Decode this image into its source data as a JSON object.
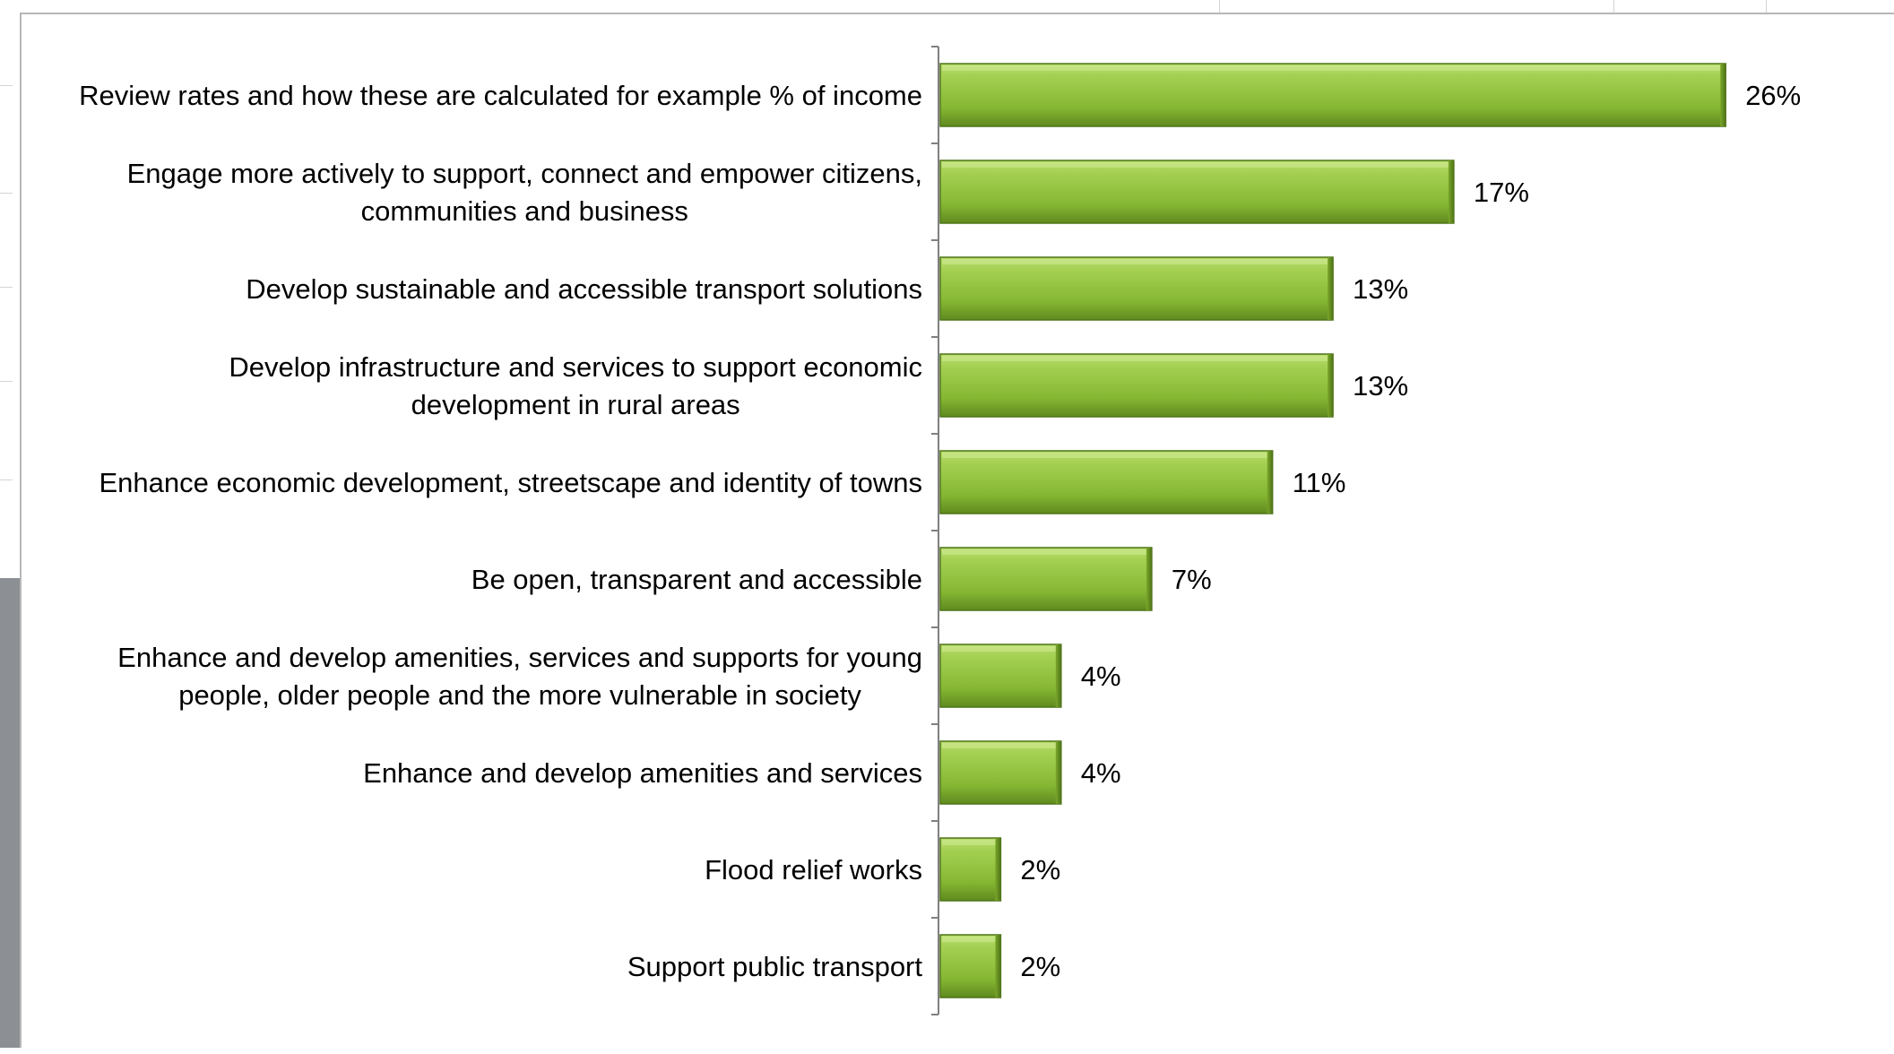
{
  "chart_data": {
    "type": "bar",
    "orientation": "horizontal",
    "categories": [
      "Review rates and how these are calculated for example % of income",
      "Engage more actively to support, connect and empower citizens, communities and business",
      "Develop sustainable and accessible transport solutions",
      "Develop infrastructure and services to support economic development in rural areas",
      "Enhance economic development, streetscape and identity of towns",
      "Be open, transparent and accessible",
      "Enhance and develop amenities, services and supports for young people, older people and the more vulnerable in society",
      "Enhance and develop amenities and services",
      "Flood relief works",
      "Support public transport"
    ],
    "category_lines": [
      [
        "Review rates and how these are calculated for example % of income"
      ],
      [
        "Engage more actively to support, connect and empower citizens,",
        "communities and business"
      ],
      [
        "Develop sustainable and accessible transport solutions"
      ],
      [
        "Develop infrastructure and services to support economic",
        "development in rural areas"
      ],
      [
        "Enhance economic development, streetscape and identity of towns"
      ],
      [
        "Be open, transparent and accessible"
      ],
      [
        "Enhance and develop amenities, services and supports for young",
        "people, older people and the more vulnerable in society"
      ],
      [
        "Enhance and develop amenities and services"
      ],
      [
        "Flood relief works"
      ],
      [
        "Support public transport"
      ]
    ],
    "values": [
      26,
      17,
      13,
      13,
      11,
      7,
      4,
      4,
      2,
      2
    ],
    "value_labels": [
      "26%",
      "17%",
      "13%",
      "13%",
      "11%",
      "7%",
      "4%",
      "4%",
      "2%",
      "2%"
    ],
    "unit": "%",
    "xlim": [
      0,
      30
    ],
    "title": "",
    "xlabel": "",
    "ylabel": "",
    "grid": false,
    "legend": "none",
    "colors": {
      "bar_fill_light": "#b6da6a",
      "bar_fill_mid": "#8fc13a",
      "bar_fill_dark": "#5f8a1f",
      "bar_edge": "#4f7418",
      "axis": "#808080"
    }
  }
}
